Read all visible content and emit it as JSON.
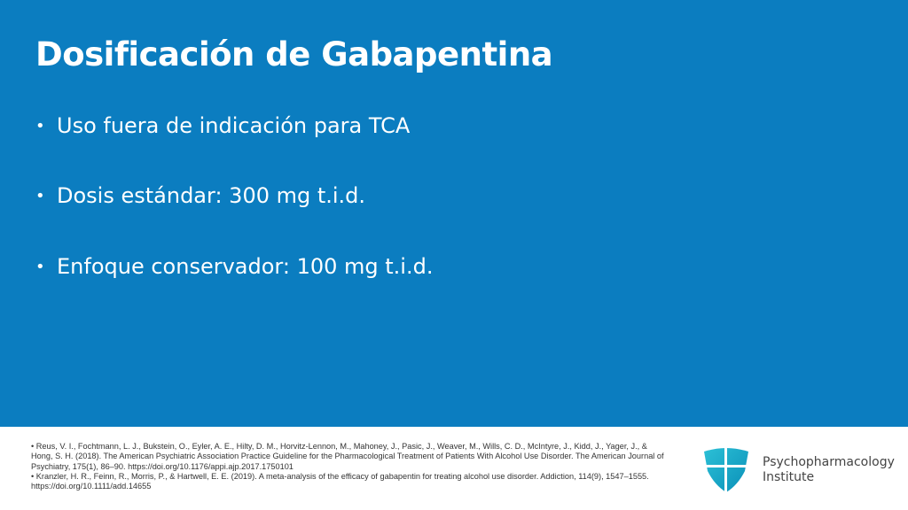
{
  "slide": {
    "title": "Dosificación de Gabapentina",
    "bullets": [
      "Uso fuera de indicación para TCA",
      "Dosis estándar: 300 mg t.i.d.",
      "Enfoque conservador: 100 mg t.i.d."
    ],
    "background_color": "#0b7dc0"
  },
  "footer": {
    "references": [
      "• Reus, V. I., Fochtmann, L. J., Bukstein, O., Eyler, A. E., Hilty, D. M., Horvitz-Lennon, M., Mahoney, J., Pasic, J., Weaver, M., Wills, C. D., McIntyre, J., Kidd, J., Yager, J., & Hong, S. H. (2018). The American Psychiatric Association Practice Guideline for the Pharmacological Treatment of Patients With Alcohol Use Disorder. The American Journal of Psychiatry, 175(1), 86–90. https://doi.org/10.1176/appi.ajp.2017.1750101",
      "• Kranzler, H. R., Feinn, R., Morris, P., & Hartwell, E. E. (2019). A meta-analysis of the efficacy of gabapentin for treating alcohol use disorder. Addiction, 114(9), 1547–1555. https://doi.org/10.1111/add.14655"
    ],
    "logo": {
      "line1": "Psychopharmacology",
      "line2": "Institute",
      "icon": "shield-icon"
    }
  }
}
